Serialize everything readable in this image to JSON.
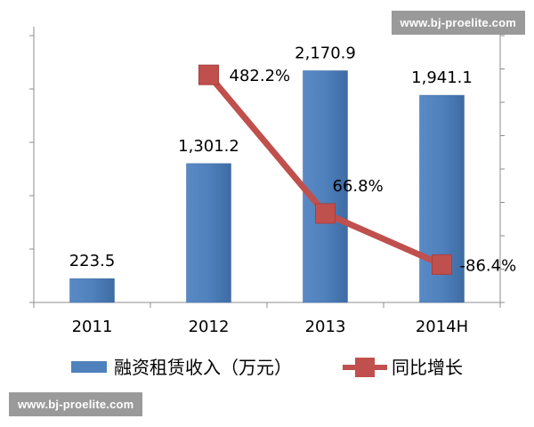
{
  "watermark": {
    "top": "www.bj-proelite.com",
    "bottom": "www.bj-proelite.com"
  },
  "chart_data": {
    "type": "bar",
    "categories": [
      "2011",
      "2012",
      "2013",
      "2014H"
    ],
    "series": [
      {
        "name": "融资租赁收入（万元）",
        "kind": "bar",
        "axis": "left",
        "color": "#4F81BD",
        "values": [
          223.5,
          1301.2,
          2170.9,
          1941.1
        ],
        "labels": [
          "223.5",
          "1,301.2",
          "2,170.9",
          "1,941.1"
        ]
      },
      {
        "name": "同比增长",
        "kind": "line",
        "axis": "right",
        "color": "#C0504D",
        "values": [
          null,
          482.2,
          66.8,
          -86.4
        ],
        "labels": [
          "",
          "482.2%",
          "66.8%",
          "-86.4%"
        ]
      }
    ],
    "ylim": [
      0,
      2500
    ],
    "y2lim": [
      -200,
      600
    ],
    "title": "",
    "xlabel": "",
    "ylabel": "",
    "grid": false,
    "legend_position": "bottom"
  }
}
